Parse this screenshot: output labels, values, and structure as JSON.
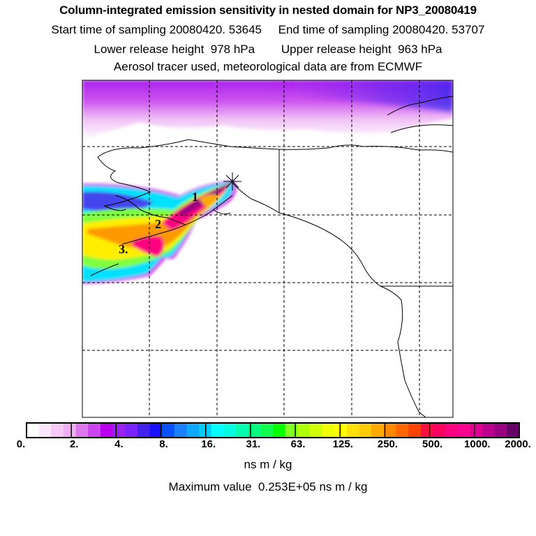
{
  "header": {
    "title": "Column-integrated emission sensitivity in nested domain for NP3_20080419",
    "line1": "Start time of sampling 20080420. 53645     End time of sampling 20080420. 53707",
    "line2": "Lower release height  978 hPa        Upper release height  963 hPa",
    "line3": "Aerosol tracer used, meteorological data are from ECMWF"
  },
  "chart_data": {
    "type": "heatmap",
    "title": "Column-integrated emission sensitivity in nested domain for NP3_20080419",
    "plume_labels": [
      "1",
      "2",
      "3."
    ],
    "release_marker": "star",
    "colorbar": {
      "tick_labels": [
        "0.",
        "2.",
        "4.",
        "8.",
        "16.",
        "31.",
        "63.",
        "125.",
        "250.",
        "500.",
        "1000.",
        "2000."
      ],
      "colors": [
        "#ffffff",
        "#fbe6fb",
        "#f5c8f5",
        "#eeb0f0",
        "#dd77ee",
        "#cc44ee",
        "#bb00ee",
        "#9a22ee",
        "#7a22ff",
        "#4422ee",
        "#1a10ff",
        "#0a50ff",
        "#1a80ff",
        "#10a8ff",
        "#00ccff",
        "#00ffff",
        "#00ffe0",
        "#00ffb0",
        "#00ff80",
        "#10ff50",
        "#00ff00",
        "#80ff20",
        "#b0ff00",
        "#d0ff00",
        "#f0ff00",
        "#ffff00",
        "#ffe000",
        "#ffcc00",
        "#ffaa00",
        "#ff8800",
        "#ff6600",
        "#ff4400",
        "#ff1040",
        "#ff0060",
        "#ff0080",
        "#ff0090",
        "#dd0090",
        "#bb0090",
        "#990080",
        "#660066"
      ],
      "unit": "ns m / kg"
    },
    "max_value_text": "Maximum value  0.253E+05 ns m / kg"
  }
}
